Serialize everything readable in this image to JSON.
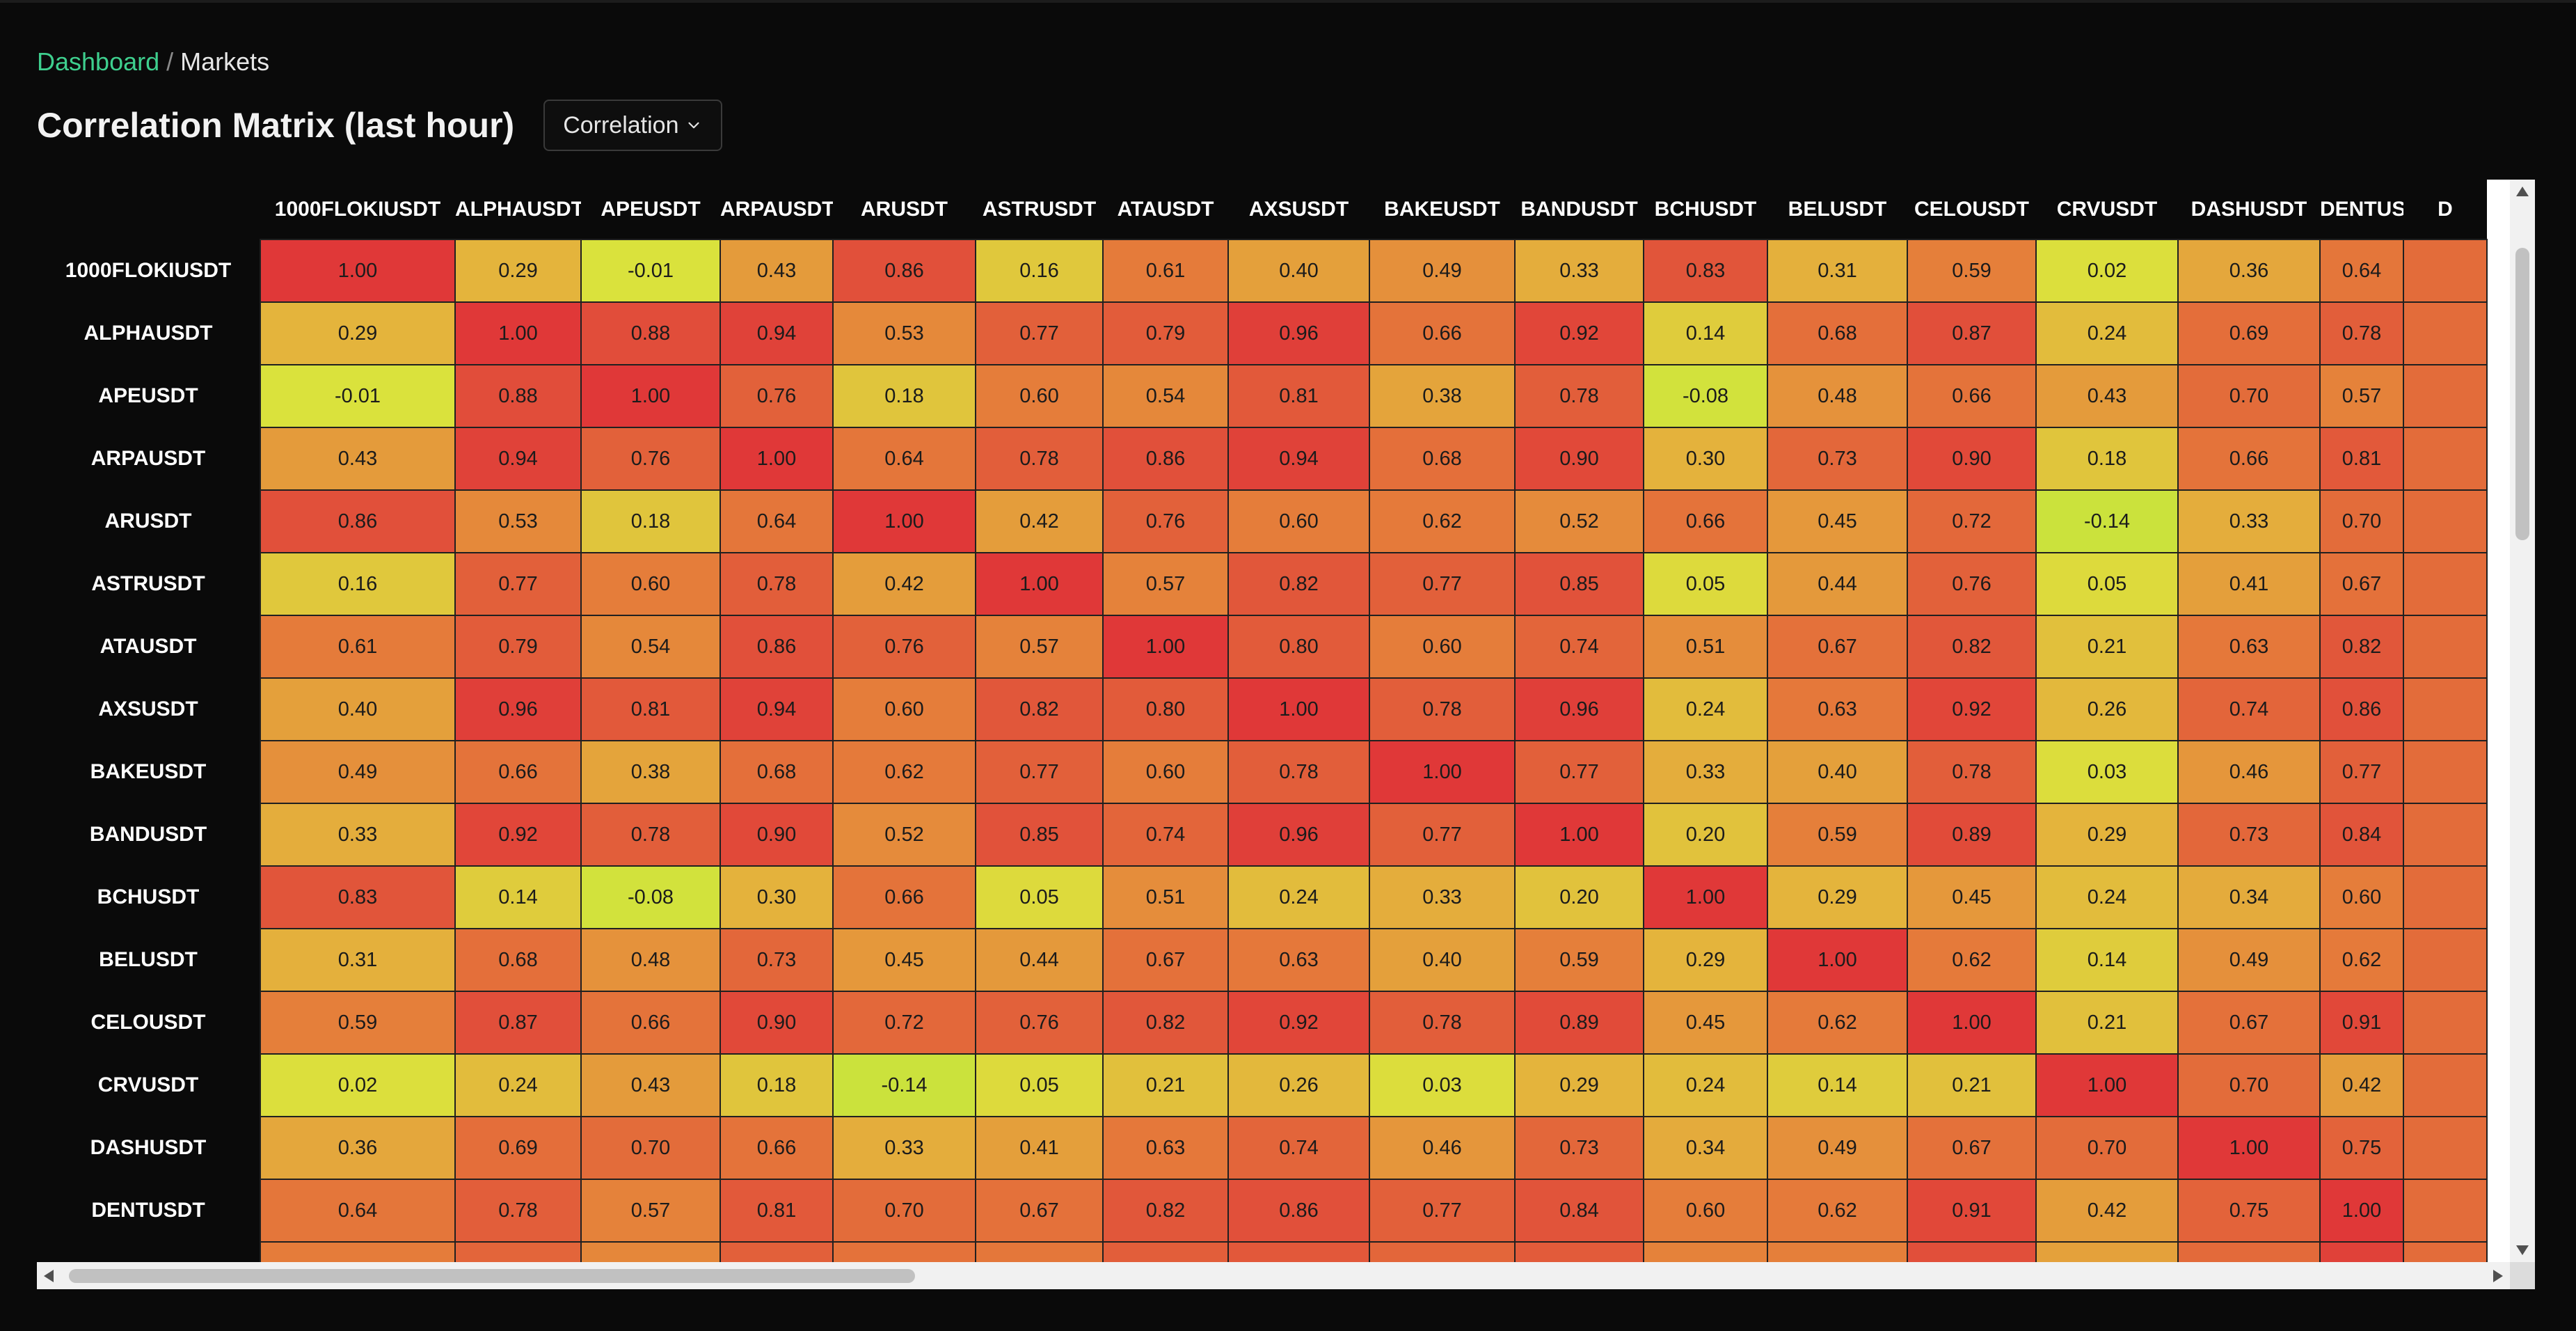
{
  "breadcrumb": {
    "home": "Dashboard",
    "separator": "/",
    "current": "Markets"
  },
  "page": {
    "title": "Correlation Matrix (last hour)"
  },
  "metric_select": {
    "value": "Correlation"
  },
  "colors": {
    "accent": "#3ecf8e",
    "background": "#0a0a0a",
    "scale_high": "#e03a3a",
    "scale_mid": "#e5a33b",
    "scale_low": "#c4e23c"
  },
  "matrix": {
    "columns": [
      "1000FLOKIUSDT",
      "ALPHAUSDT",
      "APEUSDT",
      "ARPAUSDT",
      "ARUSDT",
      "ASTRUSDT",
      "ATAUSDT",
      "AXSUSDT",
      "BAKEUSDT",
      "BANDUSDT",
      "BCHUSDT",
      "BELUSDT",
      "CELOUSDT",
      "CRVUSDT",
      "DASHUSDT",
      "DENTUSDT",
      "D"
    ],
    "rows": [
      {
        "label": "1000FLOKIUSDT",
        "values": [
          "1.00",
          "0.29",
          "-0.01",
          "0.43",
          "0.86",
          "0.16",
          "0.61",
          "0.40",
          "0.49",
          "0.33",
          "0.83",
          "0.31",
          "0.59",
          "0.02",
          "0.36",
          "0.64",
          ""
        ]
      },
      {
        "label": "ALPHAUSDT",
        "values": [
          "0.29",
          "1.00",
          "0.88",
          "0.94",
          "0.53",
          "0.77",
          "0.79",
          "0.96",
          "0.66",
          "0.92",
          "0.14",
          "0.68",
          "0.87",
          "0.24",
          "0.69",
          "0.78",
          ""
        ]
      },
      {
        "label": "APEUSDT",
        "values": [
          "-0.01",
          "0.88",
          "1.00",
          "0.76",
          "0.18",
          "0.60",
          "0.54",
          "0.81",
          "0.38",
          "0.78",
          "-0.08",
          "0.48",
          "0.66",
          "0.43",
          "0.70",
          "0.57",
          ""
        ]
      },
      {
        "label": "ARPAUSDT",
        "values": [
          "0.43",
          "0.94",
          "0.76",
          "1.00",
          "0.64",
          "0.78",
          "0.86",
          "0.94",
          "0.68",
          "0.90",
          "0.30",
          "0.73",
          "0.90",
          "0.18",
          "0.66",
          "0.81",
          ""
        ]
      },
      {
        "label": "ARUSDT",
        "values": [
          "0.86",
          "0.53",
          "0.18",
          "0.64",
          "1.00",
          "0.42",
          "0.76",
          "0.60",
          "0.62",
          "0.52",
          "0.66",
          "0.45",
          "0.72",
          "-0.14",
          "0.33",
          "0.70",
          ""
        ]
      },
      {
        "label": "ASTRUSDT",
        "values": [
          "0.16",
          "0.77",
          "0.60",
          "0.78",
          "0.42",
          "1.00",
          "0.57",
          "0.82",
          "0.77",
          "0.85",
          "0.05",
          "0.44",
          "0.76",
          "0.05",
          "0.41",
          "0.67",
          ""
        ]
      },
      {
        "label": "ATAUSDT",
        "values": [
          "0.61",
          "0.79",
          "0.54",
          "0.86",
          "0.76",
          "0.57",
          "1.00",
          "0.80",
          "0.60",
          "0.74",
          "0.51",
          "0.67",
          "0.82",
          "0.21",
          "0.63",
          "0.82",
          ""
        ]
      },
      {
        "label": "AXSUSDT",
        "values": [
          "0.40",
          "0.96",
          "0.81",
          "0.94",
          "0.60",
          "0.82",
          "0.80",
          "1.00",
          "0.78",
          "0.96",
          "0.24",
          "0.63",
          "0.92",
          "0.26",
          "0.74",
          "0.86",
          ""
        ]
      },
      {
        "label": "BAKEUSDT",
        "values": [
          "0.49",
          "0.66",
          "0.38",
          "0.68",
          "0.62",
          "0.77",
          "0.60",
          "0.78",
          "1.00",
          "0.77",
          "0.33",
          "0.40",
          "0.78",
          "0.03",
          "0.46",
          "0.77",
          ""
        ]
      },
      {
        "label": "BANDUSDT",
        "values": [
          "0.33",
          "0.92",
          "0.78",
          "0.90",
          "0.52",
          "0.85",
          "0.74",
          "0.96",
          "0.77",
          "1.00",
          "0.20",
          "0.59",
          "0.89",
          "0.29",
          "0.73",
          "0.84",
          ""
        ]
      },
      {
        "label": "BCHUSDT",
        "values": [
          "0.83",
          "0.14",
          "-0.08",
          "0.30",
          "0.66",
          "0.05",
          "0.51",
          "0.24",
          "0.33",
          "0.20",
          "1.00",
          "0.29",
          "0.45",
          "0.24",
          "0.34",
          "0.60",
          ""
        ]
      },
      {
        "label": "BELUSDT",
        "values": [
          "0.31",
          "0.68",
          "0.48",
          "0.73",
          "0.45",
          "0.44",
          "0.67",
          "0.63",
          "0.40",
          "0.59",
          "0.29",
          "1.00",
          "0.62",
          "0.14",
          "0.49",
          "0.62",
          ""
        ]
      },
      {
        "label": "CELOUSDT",
        "values": [
          "0.59",
          "0.87",
          "0.66",
          "0.90",
          "0.72",
          "0.76",
          "0.82",
          "0.92",
          "0.78",
          "0.89",
          "0.45",
          "0.62",
          "1.00",
          "0.21",
          "0.67",
          "0.91",
          ""
        ]
      },
      {
        "label": "CRVUSDT",
        "values": [
          "0.02",
          "0.24",
          "0.43",
          "0.18",
          "-0.14",
          "0.05",
          "0.21",
          "0.26",
          "0.03",
          "0.29",
          "0.24",
          "0.14",
          "0.21",
          "1.00",
          "0.70",
          "0.42",
          ""
        ]
      },
      {
        "label": "DASHUSDT",
        "values": [
          "0.36",
          "0.69",
          "0.70",
          "0.66",
          "0.33",
          "0.41",
          "0.63",
          "0.74",
          "0.46",
          "0.73",
          "0.34",
          "0.49",
          "0.67",
          "0.70",
          "1.00",
          "0.75",
          ""
        ]
      },
      {
        "label": "DENTUSDT",
        "values": [
          "0.64",
          "0.78",
          "0.57",
          "0.81",
          "0.70",
          "0.67",
          "0.82",
          "0.86",
          "0.77",
          "0.84",
          "0.60",
          "0.62",
          "0.91",
          "0.42",
          "0.75",
          "1.00",
          ""
        ]
      },
      {
        "label": "",
        "values": [
          "",
          "",
          "",
          "",
          "",
          "",
          "",
          "",
          "",
          "",
          "",
          "",
          "",
          "",
          "",
          "",
          ""
        ]
      }
    ]
  }
}
